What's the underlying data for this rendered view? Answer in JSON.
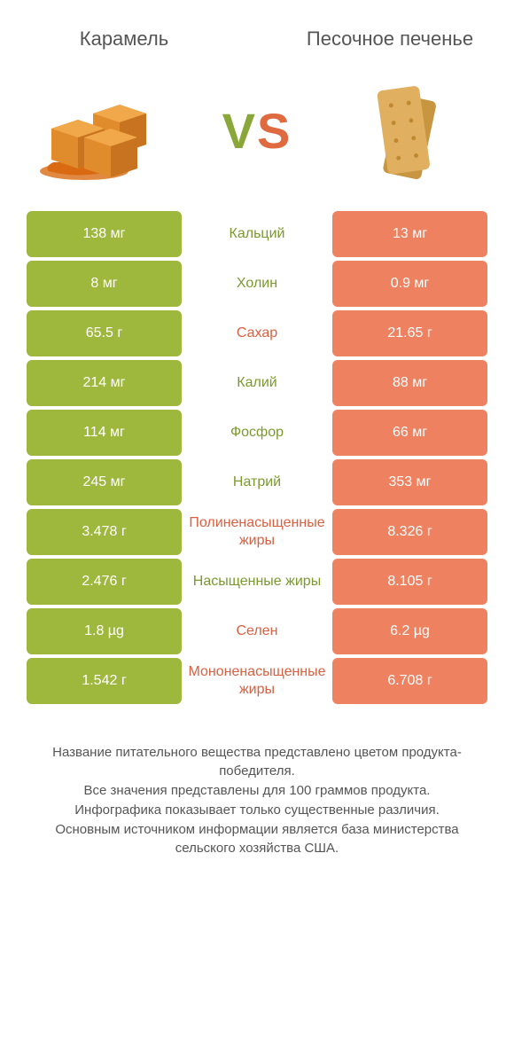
{
  "titles": {
    "left": "Карамель",
    "right": "Песочное печенье"
  },
  "vs": {
    "v": "V",
    "s": "S"
  },
  "colors": {
    "left_bg": "#9eb83e",
    "right_bg": "#ed8160",
    "left_text": "#7a9a2e",
    "right_text": "#d96040",
    "row_border_radius": 6
  },
  "rows": [
    {
      "left": "138 мг",
      "mid": "Кальций",
      "right": "13 мг",
      "winner": "left"
    },
    {
      "left": "8 мг",
      "mid": "Холин",
      "right": "0.9 мг",
      "winner": "left"
    },
    {
      "left": "65.5 г",
      "mid": "Сахар",
      "right": "21.65 г",
      "winner": "right"
    },
    {
      "left": "214 мг",
      "mid": "Калий",
      "right": "88 мг",
      "winner": "left"
    },
    {
      "left": "114 мг",
      "mid": "Фосфор",
      "right": "66 мг",
      "winner": "left"
    },
    {
      "left": "245 мг",
      "mid": "Натрий",
      "right": "353 мг",
      "winner": "left"
    },
    {
      "left": "3.478 г",
      "mid": "Полиненасыщенные жиры",
      "right": "8.326 г",
      "winner": "right"
    },
    {
      "left": "2.476 г",
      "mid": "Насыщенные жиры",
      "right": "8.105 г",
      "winner": "left"
    },
    {
      "left": "1.8 µg",
      "mid": "Селен",
      "right": "6.2 µg",
      "winner": "right"
    },
    {
      "left": "1.542 г",
      "mid": "Мононенасыщенные жиры",
      "right": "6.708 г",
      "winner": "right"
    }
  ],
  "footer": [
    "Название питательного вещества представлено цветом продукта-победителя.",
    "Все значения представлены для 100 граммов продукта.",
    "Инфографика показывает только существенные различия.",
    "Основным источником информации является база министерства сельского хозяйства США."
  ]
}
